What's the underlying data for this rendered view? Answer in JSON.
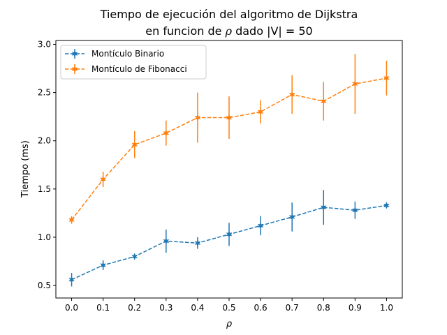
{
  "chart_data": {
    "type": "line",
    "title_line1": "Tiempo de ejecución del algoritmo de Dijkstra",
    "title_line2_prefix": "en funcion de ",
    "title_line2_symbol": "ρ",
    "title_line2_suffix": " dado |V| = 50",
    "xlabel": "ρ",
    "ylabel": "Tiempo (ms)",
    "xlim": [
      -0.05,
      1.05
    ],
    "ylim": [
      0.37,
      3.04
    ],
    "xticks": [
      0.0,
      0.1,
      0.2,
      0.3,
      0.4,
      0.5,
      0.6,
      0.7,
      0.8,
      0.9,
      1.0
    ],
    "xtick_labels": [
      "0.0",
      "0.1",
      "0.2",
      "0.3",
      "0.4",
      "0.5",
      "0.6",
      "0.7",
      "0.8",
      "0.9",
      "1.0"
    ],
    "yticks": [
      0.5,
      1.0,
      1.5,
      2.0,
      2.5,
      3.0
    ],
    "ytick_labels": [
      "0.5",
      "1.0",
      "1.5",
      "2.0",
      "2.5",
      "3.0"
    ],
    "grid": false,
    "legend_position": "top-left",
    "x": [
      0.0,
      0.1,
      0.2,
      0.3,
      0.4,
      0.5,
      0.6,
      0.7,
      0.8,
      0.9,
      1.0
    ],
    "series": [
      {
        "name": "Montículo Binario",
        "color": "#1f77b4",
        "values": [
          0.56,
          0.71,
          0.8,
          0.96,
          0.94,
          1.03,
          1.12,
          1.21,
          1.31,
          1.28,
          1.33
        ],
        "errors": [
          0.07,
          0.05,
          0.03,
          0.12,
          0.06,
          0.12,
          0.1,
          0.15,
          0.18,
          0.09,
          0.03
        ]
      },
      {
        "name": "Montículo de Fibonacci",
        "color": "#ff7f0e",
        "values": [
          1.18,
          1.6,
          1.96,
          2.08,
          2.24,
          2.24,
          2.3,
          2.48,
          2.41,
          2.59,
          2.65
        ],
        "errors": [
          0.04,
          0.08,
          0.14,
          0.13,
          0.26,
          0.22,
          0.12,
          0.2,
          0.2,
          0.31,
          0.18
        ]
      }
    ]
  }
}
